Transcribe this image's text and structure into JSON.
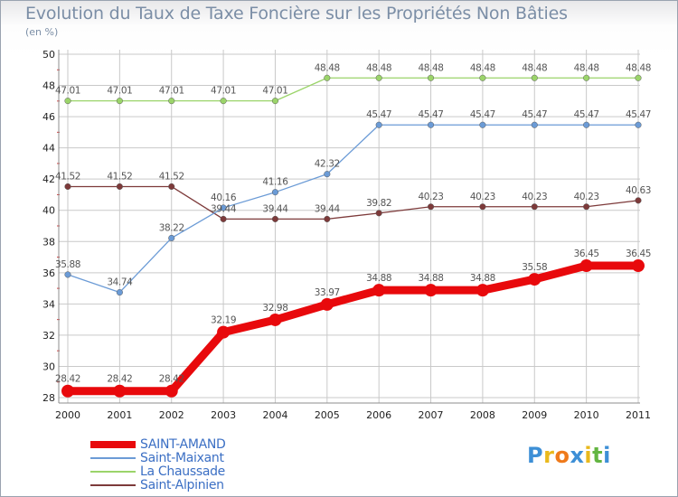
{
  "colors": {
    "title": "#7b8ea6",
    "grid": "#c9c9c9",
    "axis": "#8c8c8c",
    "tick_text": "#222222",
    "value_text": "#555555",
    "legend_text": "#3b6fc4"
  },
  "chart_data": {
    "type": "line",
    "title": "Evolution du Taux de Taxe Foncière sur les Propriétés Non Bâties",
    "ylabel": "(en %)",
    "xlabel": "",
    "categories": [
      "2000",
      "2001",
      "2002",
      "2003",
      "2004",
      "2005",
      "2006",
      "2007",
      "2008",
      "2009",
      "2010",
      "2011"
    ],
    "ylim": [
      28,
      50
    ],
    "yticks": [
      28,
      30,
      32,
      34,
      36,
      38,
      40,
      42,
      44,
      46,
      48,
      50
    ],
    "grid": true,
    "legend_position": "bottom-left",
    "series": [
      {
        "name": "SAINT-AMAND",
        "color": "#e8090c",
        "values": [
          28.42,
          28.42,
          28.42,
          32.19,
          32.98,
          33.97,
          34.88,
          34.88,
          34.88,
          35.58,
          36.45,
          36.45
        ],
        "labels": [
          "28.42",
          "28.42",
          "28.42",
          "32.19",
          "32.98",
          "33.97",
          "34.88",
          "34.88",
          "34.88",
          "35.58",
          "36.45",
          "36.45"
        ]
      },
      {
        "name": "Saint-Maixant",
        "color": "#6b9bd6",
        "values": [
          35.88,
          34.74,
          38.22,
          40.16,
          41.16,
          42.32,
          45.47,
          45.47,
          45.47,
          45.47,
          45.47,
          45.47
        ],
        "labels": [
          "35.88",
          "34.74",
          "38.22",
          "40.16",
          "41.16",
          "42.32",
          "45.47",
          "45.47",
          "45.47",
          "45.47",
          "45.47",
          "45.47"
        ]
      },
      {
        "name": "La Chaussade",
        "color": "#9bd46a",
        "values": [
          47.01,
          47.01,
          47.01,
          47.01,
          47.01,
          48.48,
          48.48,
          48.48,
          48.48,
          48.48,
          48.48,
          48.48
        ],
        "labels": [
          "47.01",
          "47.01",
          "47.01",
          "47.01",
          "47.01",
          "48.48",
          "48.48",
          "48.48",
          "48.48",
          "48.48",
          "48.48",
          "48.48"
        ]
      },
      {
        "name": "Saint-Alpinien",
        "color": "#7d3a3a",
        "values": [
          41.52,
          41.52,
          41.52,
          39.44,
          39.44,
          39.44,
          39.82,
          40.23,
          40.23,
          40.23,
          40.23,
          40.63
        ],
        "labels": [
          "41.52",
          "41.52",
          "41.52",
          "39.44",
          "39.44",
          "39.44",
          "39.82",
          "40.23",
          "40.23",
          "40.23",
          "40.23",
          "40.63"
        ]
      }
    ]
  },
  "logo": {
    "letters": [
      "P",
      "r",
      "o",
      "x",
      "i",
      "t",
      "i"
    ],
    "colors": [
      "#3d8fd6",
      "#e9b91d",
      "#ef7a1b",
      "#3d8fd6",
      "#e9b91d",
      "#63b541",
      "#3d8fd6"
    ]
  }
}
